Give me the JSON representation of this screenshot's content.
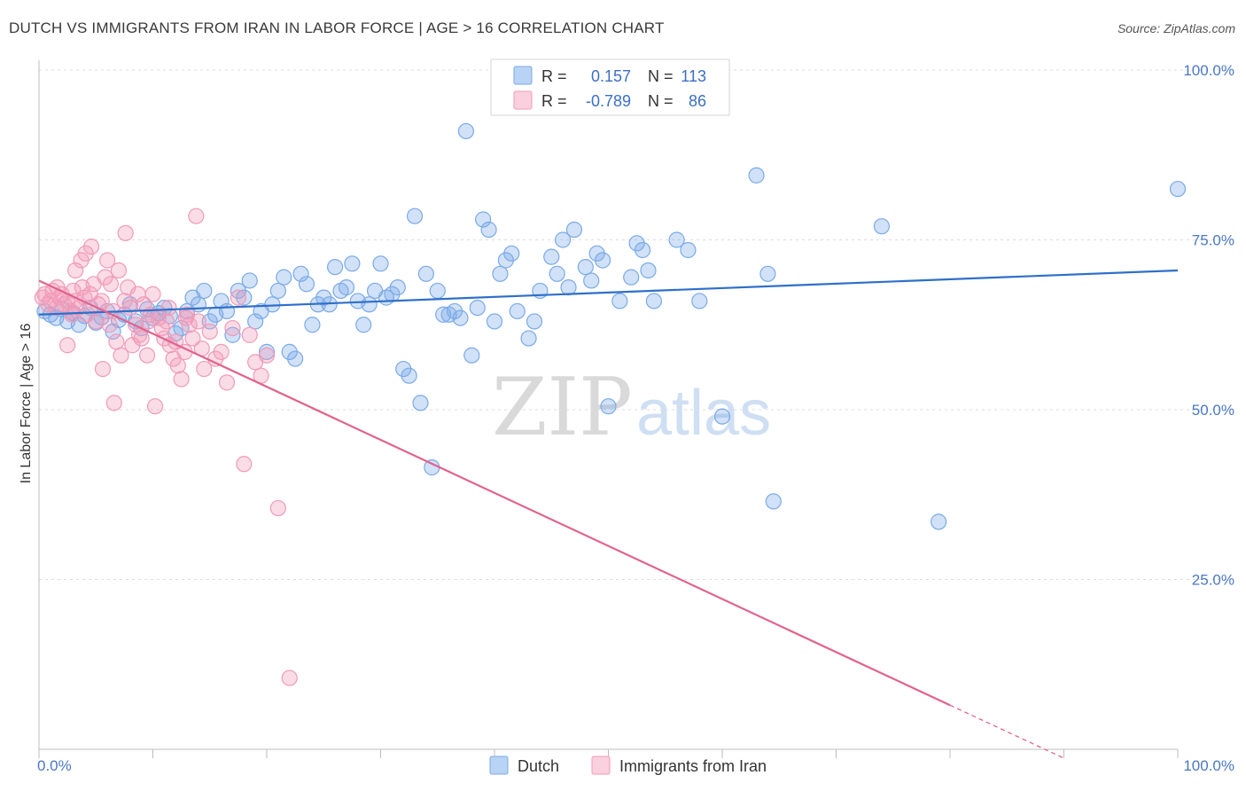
{
  "title": "DUTCH VS IMMIGRANTS FROM IRAN IN LABOR FORCE | AGE > 16 CORRELATION CHART",
  "source": "Source: ZipAtlas.com",
  "watermark": {
    "zip": "ZIP",
    "atlas": "atlas"
  },
  "legend": {
    "rows": [
      {
        "r_label": "R =",
        "r_value": "0.157",
        "n_label": "N =",
        "n_value": "113",
        "color": "#7aaae8"
      },
      {
        "r_label": "R =",
        "r_value": "-0.789",
        "n_label": "N =",
        "n_value": "86",
        "color": "#f19ab8"
      }
    ]
  },
  "chart_data": {
    "type": "scatter",
    "title": "DUTCH VS IMMIGRANTS FROM IRAN IN LABOR FORCE | AGE > 16 CORRELATION CHART",
    "xlabel": "",
    "ylabel": "In Labor Force | Age > 16",
    "xlim": [
      0,
      100
    ],
    "ylim": [
      0,
      100
    ],
    "x_tick_labels": {
      "left": "0.0%",
      "right": "100.0%"
    },
    "y_ticks": [
      {
        "value": 25,
        "label": "25.0%"
      },
      {
        "value": 50,
        "label": "50.0%"
      },
      {
        "value": 75,
        "label": "75.0%"
      },
      {
        "value": 100,
        "label": "100.0%"
      }
    ],
    "grid": true,
    "legend_position": "bottom-center",
    "series": [
      {
        "name": "Dutch",
        "color": "#7aaae8",
        "line_color": "#2f6fca",
        "trend": {
          "x0": 0,
          "y0": 64.0,
          "x1": 100,
          "y1": 70.5
        },
        "points": [
          [
            0.5,
            64.5
          ],
          [
            1.0,
            64.0
          ],
          [
            1.5,
            63.5
          ],
          [
            2.0,
            64.8
          ],
          [
            2.5,
            63.0
          ],
          [
            3.0,
            64.2
          ],
          [
            3.5,
            62.5
          ],
          [
            4.0,
            63.8
          ],
          [
            4.5,
            65.0
          ],
          [
            5.0,
            62.8
          ],
          [
            5.5,
            63.6
          ],
          [
            6.0,
            64.5
          ],
          [
            6.5,
            61.5
          ],
          [
            7.0,
            63.2
          ],
          [
            7.5,
            64.0
          ],
          [
            8.0,
            65.5
          ],
          [
            8.5,
            63.0
          ],
          [
            9.0,
            62.0
          ],
          [
            9.5,
            64.8
          ],
          [
            10.0,
            63.5
          ],
          [
            10.5,
            64.2
          ],
          [
            11.0,
            65.0
          ],
          [
            11.5,
            63.8
          ],
          [
            12.0,
            61.2
          ],
          [
            12.5,
            62.0
          ],
          [
            13.0,
            64.5
          ],
          [
            13.5,
            66.5
          ],
          [
            14.0,
            65.5
          ],
          [
            14.5,
            67.5
          ],
          [
            15.0,
            63.0
          ],
          [
            15.5,
            64.0
          ],
          [
            16.0,
            66.0
          ],
          [
            16.5,
            64.5
          ],
          [
            17.0,
            61.0
          ],
          [
            17.5,
            67.5
          ],
          [
            18.0,
            66.5
          ],
          [
            18.5,
            69.0
          ],
          [
            19.0,
            63.0
          ],
          [
            19.5,
            64.5
          ],
          [
            20.0,
            58.5
          ],
          [
            20.5,
            65.5
          ],
          [
            21.0,
            67.5
          ],
          [
            21.5,
            69.5
          ],
          [
            22.0,
            58.5
          ],
          [
            22.5,
            57.5
          ],
          [
            23.0,
            70.0
          ],
          [
            23.5,
            68.5
          ],
          [
            24.0,
            62.5
          ],
          [
            24.5,
            65.5
          ],
          [
            25.0,
            66.5
          ],
          [
            25.5,
            65.5
          ],
          [
            26.0,
            71.0
          ],
          [
            26.5,
            67.5
          ],
          [
            27.0,
            68.0
          ],
          [
            27.5,
            71.5
          ],
          [
            28.0,
            66.0
          ],
          [
            28.5,
            62.5
          ],
          [
            29.0,
            65.5
          ],
          [
            29.5,
            67.5
          ],
          [
            30.0,
            71.5
          ],
          [
            30.5,
            66.5
          ],
          [
            31.0,
            67.0
          ],
          [
            31.5,
            68.0
          ],
          [
            32.0,
            56.0
          ],
          [
            32.5,
            55.0
          ],
          [
            33.0,
            78.5
          ],
          [
            33.5,
            51.0
          ],
          [
            34.0,
            70.0
          ],
          [
            34.5,
            41.5
          ],
          [
            35.0,
            67.5
          ],
          [
            35.5,
            64.0
          ],
          [
            36.0,
            64.0
          ],
          [
            36.5,
            64.5
          ],
          [
            37.0,
            63.5
          ],
          [
            37.5,
            91.0
          ],
          [
            38.0,
            58.0
          ],
          [
            38.5,
            65.0
          ],
          [
            39.0,
            78.0
          ],
          [
            39.5,
            76.5
          ],
          [
            40.0,
            63.0
          ],
          [
            40.5,
            70.0
          ],
          [
            41.0,
            72.0
          ],
          [
            41.5,
            73.0
          ],
          [
            42.0,
            64.5
          ],
          [
            43.0,
            60.5
          ],
          [
            43.5,
            63.0
          ],
          [
            44.0,
            67.5
          ],
          [
            45.0,
            72.5
          ],
          [
            45.5,
            70.0
          ],
          [
            46.0,
            75.0
          ],
          [
            46.5,
            68.0
          ],
          [
            47.0,
            76.5
          ],
          [
            48.0,
            71.0
          ],
          [
            48.5,
            69.0
          ],
          [
            49.0,
            73.0
          ],
          [
            49.5,
            72.0
          ],
          [
            50.0,
            50.5
          ],
          [
            51.0,
            66.0
          ],
          [
            52.0,
            69.5
          ],
          [
            52.5,
            74.5
          ],
          [
            53.0,
            73.5
          ],
          [
            53.5,
            70.5
          ],
          [
            54.0,
            66.0
          ],
          [
            56.0,
            75.0
          ],
          [
            57.0,
            73.5
          ],
          [
            58.0,
            66.0
          ],
          [
            60.0,
            49.0
          ],
          [
            63.0,
            84.5
          ],
          [
            64.0,
            70.0
          ],
          [
            64.5,
            36.5
          ],
          [
            74.0,
            77.0
          ],
          [
            79.0,
            33.5
          ],
          [
            100.0,
            82.5
          ]
        ]
      },
      {
        "name": "Immigrants from Iran",
        "color": "#f19ab8",
        "line_color": "#e0638e",
        "trend": {
          "x0": 0,
          "y0": 69.0,
          "x1": 80,
          "y1": 6.5
        },
        "trend_dashed": {
          "x0": 80,
          "y0": 6.5,
          "x1": 90,
          "y1": -1.3
        },
        "points": [
          [
            0.3,
            66.5
          ],
          [
            0.5,
            67.0
          ],
          [
            0.8,
            65.5
          ],
          [
            1.0,
            66.0
          ],
          [
            1.2,
            67.5
          ],
          [
            1.5,
            65.0
          ],
          [
            1.8,
            66.5
          ],
          [
            2.0,
            67.0
          ],
          [
            2.2,
            65.5
          ],
          [
            2.5,
            66.0
          ],
          [
            2.8,
            64.5
          ],
          [
            3.0,
            67.5
          ],
          [
            3.2,
            66.0
          ],
          [
            3.5,
            65.0
          ],
          [
            3.8,
            68.0
          ],
          [
            4.0,
            66.5
          ],
          [
            4.2,
            64.0
          ],
          [
            4.5,
            67.0
          ],
          [
            4.8,
            68.5
          ],
          [
            5.0,
            63.0
          ],
          [
            5.2,
            65.5
          ],
          [
            5.5,
            66.0
          ],
          [
            5.8,
            69.5
          ],
          [
            6.0,
            72.0
          ],
          [
            6.2,
            62.5
          ],
          [
            6.5,
            64.5
          ],
          [
            6.8,
            60.0
          ],
          [
            7.0,
            70.5
          ],
          [
            7.2,
            58.0
          ],
          [
            7.5,
            66.0
          ],
          [
            7.8,
            68.0
          ],
          [
            8.0,
            65.0
          ],
          [
            8.2,
            59.5
          ],
          [
            8.5,
            62.5
          ],
          [
            8.8,
            61.0
          ],
          [
            9.0,
            60.5
          ],
          [
            9.2,
            65.5
          ],
          [
            9.5,
            58.0
          ],
          [
            9.8,
            64.0
          ],
          [
            10.0,
            67.0
          ],
          [
            10.2,
            50.5
          ],
          [
            10.5,
            63.5
          ],
          [
            10.8,
            62.0
          ],
          [
            11.0,
            60.5
          ],
          [
            11.2,
            63.0
          ],
          [
            11.5,
            59.5
          ],
          [
            11.8,
            57.5
          ],
          [
            12.0,
            60.0
          ],
          [
            12.2,
            56.5
          ],
          [
            12.5,
            54.5
          ],
          [
            12.8,
            58.5
          ],
          [
            13.0,
            64.0
          ],
          [
            13.2,
            62.5
          ],
          [
            13.5,
            60.5
          ],
          [
            13.8,
            78.5
          ],
          [
            14.0,
            63.0
          ],
          [
            14.5,
            56.0
          ],
          [
            15.0,
            61.5
          ],
          [
            15.5,
            57.5
          ],
          [
            16.0,
            58.5
          ],
          [
            16.5,
            54.0
          ],
          [
            17.0,
            62.0
          ],
          [
            17.5,
            66.5
          ],
          [
            18.0,
            42.0
          ],
          [
            18.5,
            61.0
          ],
          [
            19.0,
            57.0
          ],
          [
            19.5,
            55.0
          ],
          [
            20.0,
            58.0
          ],
          [
            21.0,
            35.5
          ],
          [
            22.0,
            10.5
          ],
          [
            2.5,
            59.5
          ],
          [
            3.2,
            70.5
          ],
          [
            4.1,
            73.0
          ],
          [
            4.6,
            74.0
          ],
          [
            5.6,
            56.0
          ],
          [
            6.6,
            51.0
          ],
          [
            7.6,
            76.0
          ],
          [
            3.7,
            72.0
          ],
          [
            1.6,
            68.0
          ],
          [
            2.9,
            64.0
          ],
          [
            6.3,
            68.5
          ],
          [
            8.7,
            67.0
          ],
          [
            9.6,
            63.0
          ],
          [
            11.4,
            65.0
          ],
          [
            12.9,
            63.5
          ],
          [
            14.3,
            59.0
          ]
        ]
      }
    ]
  },
  "bottom_legend": [
    {
      "label": "Dutch",
      "color": "#7aaae8"
    },
    {
      "label": "Immigrants from Iran",
      "color": "#f19ab8"
    }
  ]
}
